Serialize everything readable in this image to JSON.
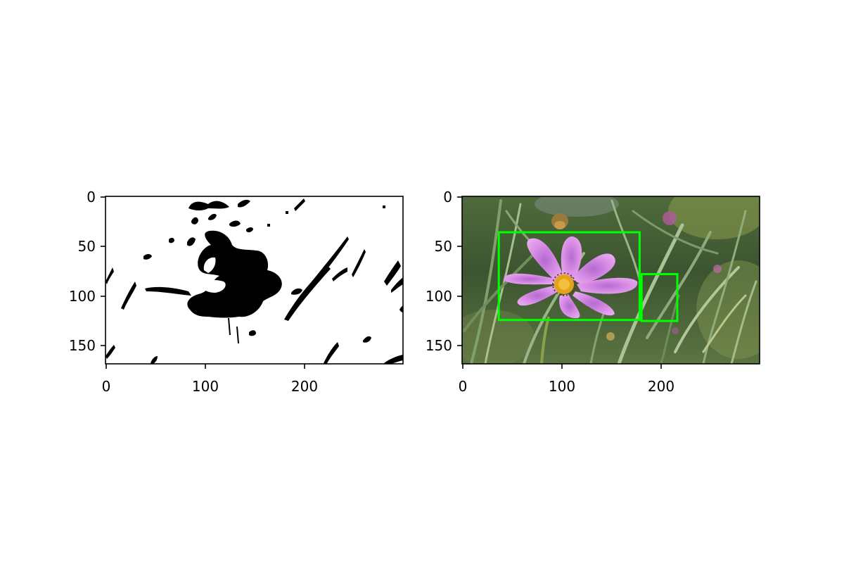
{
  "figure": {
    "background": "#ffffff",
    "axis_color": "#000000",
    "box_color": "#00ff00"
  },
  "panels": [
    {
      "kind": "binary-mask",
      "image_size": [
        300,
        168
      ],
      "xlim": [
        0,
        299
      ],
      "ylim": [
        168,
        0
      ],
      "xticks": [
        0,
        100,
        200
      ],
      "yticks": [
        0,
        50,
        100,
        150
      ],
      "xtick_labels": [
        "0",
        "100",
        "200"
      ],
      "ytick_labels": [
        "0",
        "50",
        "100",
        "150"
      ]
    },
    {
      "kind": "photo-with-detections",
      "image_size": [
        300,
        168
      ],
      "xlim": [
        0,
        299
      ],
      "ylim": [
        168,
        0
      ],
      "xticks": [
        0,
        100,
        200
      ],
      "yticks": [
        0,
        50,
        100,
        150
      ],
      "xtick_labels": [
        "0",
        "100",
        "200"
      ],
      "ytick_labels": [
        "0",
        "50",
        "100",
        "150"
      ],
      "boxes": [
        {
          "x0": 37,
          "y0": 36,
          "x1": 179,
          "y1": 124
        },
        {
          "x0": 181,
          "y0": 78,
          "x1": 217,
          "y1": 125
        }
      ]
    }
  ]
}
